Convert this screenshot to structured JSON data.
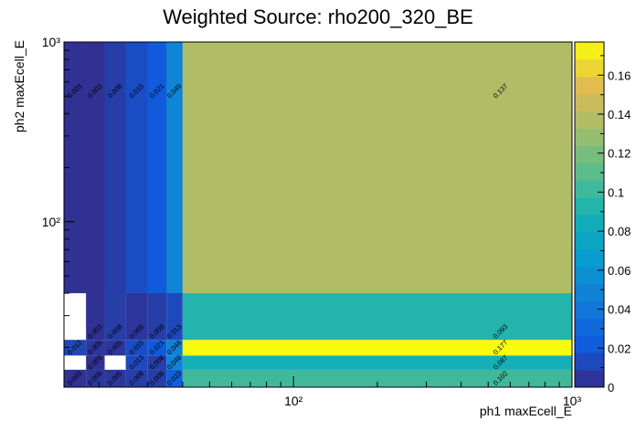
{
  "chart_data": {
    "type": "heatmap",
    "title": "Weighted Source: rho200_320_BE",
    "xlabel": "ph1 maxEcell_E",
    "ylabel": "ph2 maxEcell_E",
    "x_scale": "log",
    "y_scale": "log",
    "xlim": [
      15,
      1000
    ],
    "ylim": [
      12,
      1000
    ],
    "x_ticks": [
      {
        "value": 100,
        "label": "10²"
      },
      {
        "value": 1000,
        "label": "10³"
      }
    ],
    "y_ticks": [
      {
        "value": 100,
        "label": "10²"
      },
      {
        "value": 1000,
        "label": "10³"
      }
    ],
    "x_edges": [
      15,
      18,
      21,
      25,
      30,
      35,
      40,
      1000
    ],
    "y_edges": [
      12,
      15,
      18,
      22,
      27,
      33,
      40,
      1000
    ],
    "z_range": [
      0,
      0.177
    ],
    "colorbar": {
      "ticks": [
        0,
        0.02,
        0.04,
        0.06,
        0.08,
        0.1,
        0.12,
        0.14,
        0.16
      ]
    },
    "cells": [
      {
        "x": 0,
        "y": 0,
        "value": 0.003,
        "label": "0.003"
      },
      {
        "x": 1,
        "y": 0,
        "value": 0.005,
        "label": "0.005"
      },
      {
        "x": 2,
        "y": 0,
        "value": 0.005,
        "label": "0.005"
      },
      {
        "x": 3,
        "y": 0,
        "value": 0.008,
        "label": "0.008"
      },
      {
        "x": 4,
        "y": 0,
        "value": 0.008,
        "label": "0.008"
      },
      {
        "x": 5,
        "y": 0,
        "value": 0.023,
        "label": "0.023"
      },
      {
        "x": 6,
        "y": 0,
        "value": 0.102,
        "label": "0.102"
      },
      {
        "x": 0,
        "y": 1,
        "value": 0,
        "label": ""
      },
      {
        "x": 1,
        "y": 1,
        "value": 0.003,
        "label": "0.003"
      },
      {
        "x": 2,
        "y": 1,
        "value": 0,
        "label": ""
      },
      {
        "x": 3,
        "y": 1,
        "value": 0.013,
        "label": "0.013"
      },
      {
        "x": 4,
        "y": 1,
        "value": 0.008,
        "label": "0.008"
      },
      {
        "x": 5,
        "y": 1,
        "value": 0.046,
        "label": "0.046"
      },
      {
        "x": 6,
        "y": 1,
        "value": 0.087,
        "label": "0.087"
      },
      {
        "x": 0,
        "y": 2,
        "value": 0.012,
        "label": "0.012"
      },
      {
        "x": 1,
        "y": 2,
        "value": 0.005,
        "label": "0.005"
      },
      {
        "x": 2,
        "y": 2,
        "value": 0.005,
        "label": "0.005"
      },
      {
        "x": 3,
        "y": 2,
        "value": 0.015,
        "label": "0.015"
      },
      {
        "x": 4,
        "y": 2,
        "value": 0.021,
        "label": "0.021"
      },
      {
        "x": 5,
        "y": 2,
        "value": 0.046,
        "label": "0.046"
      },
      {
        "x": 6,
        "y": 2,
        "value": 0.177,
        "label": "0.177"
      },
      {
        "x": 0,
        "y": 3,
        "value": 0,
        "label": ""
      },
      {
        "x": 1,
        "y": 3,
        "value": 0.003,
        "label": "0.003"
      },
      {
        "x": 2,
        "y": 3,
        "value": 0.008,
        "label": "0.008"
      },
      {
        "x": 3,
        "y": 3,
        "value": 0.005,
        "label": "0.005"
      },
      {
        "x": 4,
        "y": 3,
        "value": 0.008,
        "label": "0.008"
      },
      {
        "x": 5,
        "y": 3,
        "value": 0.013,
        "label": "0.013"
      },
      {
        "x": 6,
        "y": 3,
        "value": 0.093,
        "label": "0.093"
      },
      {
        "x": 0,
        "y": 6,
        "value": 0.003,
        "label": "0.003"
      },
      {
        "x": 1,
        "y": 6,
        "value": 0.003,
        "label": "0.003"
      },
      {
        "x": 2,
        "y": 6,
        "value": 0.008,
        "label": "0.008"
      },
      {
        "x": 3,
        "y": 6,
        "value": 0.015,
        "label": "0.015"
      },
      {
        "x": 4,
        "y": 6,
        "value": 0.021,
        "label": "0.021"
      },
      {
        "x": 5,
        "y": 6,
        "value": 0.049,
        "label": "0.049"
      },
      {
        "x": 6,
        "y": 6,
        "value": 0.137,
        "label": "0.137"
      }
    ],
    "merged_rows": [
      {
        "from": 3,
        "to": 6
      }
    ],
    "grid": false,
    "legend": "none"
  }
}
